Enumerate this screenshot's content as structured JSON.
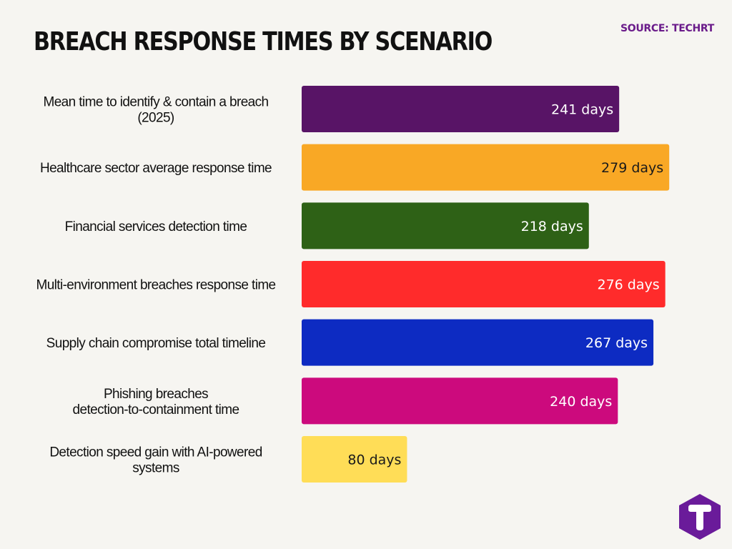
{
  "header": {
    "title": "BREACH RESPONSE TIMES BY SCENARIO",
    "source": "SOURCE: TECHRT"
  },
  "logo": {
    "letter": "T",
    "color": "#6a1b9a"
  },
  "chart_data": {
    "type": "bar",
    "orientation": "horizontal",
    "title": "BREACH RESPONSE TIMES BY SCENARIO",
    "xlabel": "",
    "ylabel": "",
    "grid": false,
    "legend": "none",
    "xlim": [
      0,
      300
    ],
    "value_suffix": " days",
    "categories": [
      [
        "Mean time to identify & contain a breach",
        "(2025)"
      ],
      [
        "Healthcare sector average response time"
      ],
      [
        "Financial services detection time"
      ],
      [
        "Multi-environment breaches response time"
      ],
      [
        "Supply chain compromise total timeline"
      ],
      [
        "Phishing breaches",
        "detection-to-containment time"
      ],
      [
        "Detection speed gain with AI-powered",
        "systems"
      ]
    ],
    "values": [
      241,
      279,
      218,
      276,
      267,
      240,
      80
    ],
    "colors": [
      "#581466",
      "#f9a825",
      "#2e6116",
      "#ff2b2b",
      "#0d2bc2",
      "#cc0a7d",
      "#ffdd57"
    ],
    "label_colors": [
      "#ffffff",
      "#1a1a1a",
      "#ffffff",
      "#ffffff",
      "#ffffff",
      "#ffffff",
      "#1a1a1a"
    ]
  }
}
